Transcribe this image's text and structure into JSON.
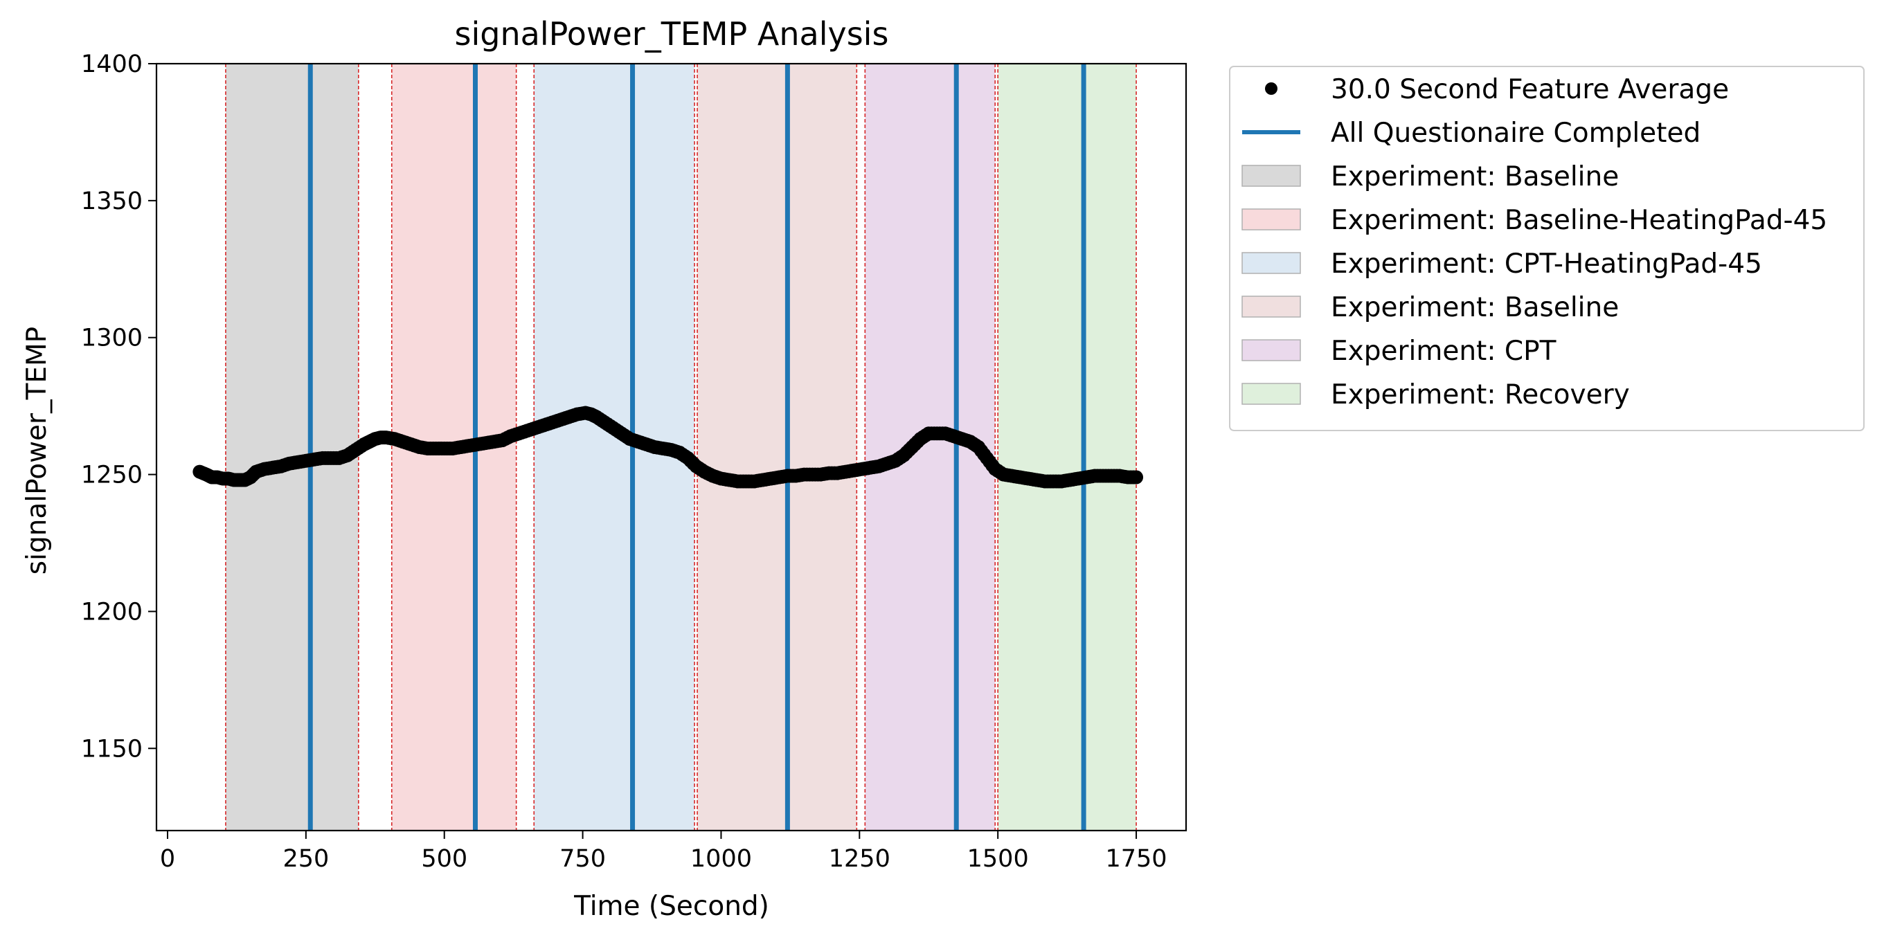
{
  "chart_data": {
    "type": "scatter",
    "title": "signalPower_TEMP Analysis",
    "xlabel": "Time (Second)",
    "ylabel": "signalPower_TEMP",
    "xlim": [
      -20,
      1840
    ],
    "ylim": [
      1120,
      1400
    ],
    "xticks": [
      0,
      250,
      500,
      750,
      1000,
      1250,
      1500,
      1750
    ],
    "yticks": [
      1150,
      1200,
      1250,
      1300,
      1350,
      1400
    ],
    "legend_position": "outside-right-top",
    "grid": false,
    "series": [
      {
        "name": "30.0 Second Feature Average",
        "kind": "points",
        "color": "#000000",
        "x": [
          58,
          70,
          80,
          90,
          100,
          110,
          120,
          130,
          140,
          150,
          160,
          175,
          190,
          205,
          220,
          235,
          250,
          265,
          280,
          295,
          310,
          325,
          340,
          355,
          365,
          375,
          385,
          395,
          410,
          425,
          440,
          455,
          470,
          485,
          500,
          515,
          530,
          545,
          560,
          575,
          590,
          605,
          620,
          635,
          650,
          665,
          680,
          695,
          710,
          725,
          740,
          755,
          765,
          775,
          790,
          805,
          820,
          835,
          850,
          865,
          880,
          895,
          910,
          925,
          940,
          955,
          970,
          985,
          1000,
          1015,
          1030,
          1045,
          1060,
          1075,
          1090,
          1105,
          1120,
          1135,
          1150,
          1165,
          1180,
          1195,
          1210,
          1225,
          1240,
          1255,
          1270,
          1285,
          1300,
          1315,
          1330,
          1345,
          1360,
          1375,
          1390,
          1405,
          1420,
          1435,
          1450,
          1465,
          1480,
          1495,
          1510,
          1525,
          1540,
          1555,
          1570,
          1585,
          1600,
          1615,
          1630,
          1645,
          1660,
          1675,
          1690,
          1705,
          1720,
          1735,
          1750
        ],
        "y": [
          1251,
          1250,
          1249,
          1249,
          1248.5,
          1248.5,
          1248,
          1248,
          1248,
          1249,
          1251,
          1252,
          1252.5,
          1253,
          1254,
          1254.5,
          1255,
          1255.5,
          1256,
          1256,
          1256,
          1257,
          1259,
          1261,
          1262,
          1263,
          1263.5,
          1263.5,
          1263,
          1262,
          1261,
          1260,
          1259.5,
          1259.5,
          1259.5,
          1259.5,
          1260,
          1260.5,
          1261,
          1261.5,
          1262,
          1262.5,
          1264,
          1265,
          1266,
          1267,
          1268,
          1269,
          1270,
          1271,
          1272,
          1272.5,
          1272,
          1271,
          1269,
          1267,
          1265,
          1263,
          1262,
          1261,
          1260,
          1259.5,
          1259,
          1258,
          1256,
          1253,
          1251,
          1249.5,
          1248.5,
          1248,
          1247.5,
          1247.5,
          1247.5,
          1248,
          1248.5,
          1249,
          1249.5,
          1249.5,
          1250,
          1250,
          1250,
          1250.5,
          1250.5,
          1251,
          1251.5,
          1252,
          1252.5,
          1253,
          1254,
          1255,
          1257,
          1260,
          1263,
          1265,
          1265,
          1265,
          1264,
          1263,
          1262,
          1260,
          1256,
          1252,
          1250,
          1249.5,
          1249,
          1248.5,
          1248,
          1247.5,
          1247.5,
          1247.5,
          1248,
          1248.5,
          1249,
          1249.5,
          1249.5,
          1249.5,
          1249.5,
          1249,
          1249
        ]
      },
      {
        "name": "All Questionaire Completed",
        "kind": "vlines",
        "color": "#1f77b4",
        "x": [
          258,
          556,
          840,
          1120,
          1425,
          1655
        ]
      }
    ],
    "spans": [
      {
        "name": "Experiment: Baseline",
        "x0": 105,
        "x1": 345,
        "color": "#d9d9d9"
      },
      {
        "name": "Experiment: Baseline-HeatingPad-45",
        "x0": 405,
        "x1": 630,
        "color": "#f8dadc"
      },
      {
        "name": "Experiment: CPT-HeatingPad-45",
        "x0": 662,
        "x1": 952,
        "color": "#dce8f3"
      },
      {
        "name": "Experiment: Baseline",
        "x0": 957,
        "x1": 1245,
        "color": "#f0dfdf"
      },
      {
        "name": "Experiment: CPT",
        "x0": 1260,
        "x1": 1495,
        "color": "#ead9ec"
      },
      {
        "name": "Experiment: Recovery",
        "x0": 1500,
        "x1": 1750,
        "color": "#dff0dc"
      }
    ],
    "boundary_lines": {
      "color": "#d62728",
      "x": [
        105,
        345,
        405,
        630,
        662,
        952,
        957,
        1245,
        1260,
        1495,
        1500,
        1750
      ]
    },
    "legend_entries": [
      {
        "label": "30.0 Second Feature Average",
        "kind": "point",
        "color": "#000000"
      },
      {
        "label": "All Questionaire Completed",
        "kind": "line",
        "color": "#1f77b4"
      },
      {
        "label": "Experiment: Baseline",
        "kind": "patch",
        "color": "#d9d9d9"
      },
      {
        "label": "Experiment: Baseline-HeatingPad-45",
        "kind": "patch",
        "color": "#f8dadc"
      },
      {
        "label": "Experiment: CPT-HeatingPad-45",
        "kind": "patch",
        "color": "#dce8f3"
      },
      {
        "label": "Experiment: Baseline",
        "kind": "patch",
        "color": "#f0dfdf"
      },
      {
        "label": "Experiment: CPT",
        "kind": "patch",
        "color": "#ead9ec"
      },
      {
        "label": "Experiment: Recovery",
        "kind": "patch",
        "color": "#dff0dc"
      }
    ]
  }
}
